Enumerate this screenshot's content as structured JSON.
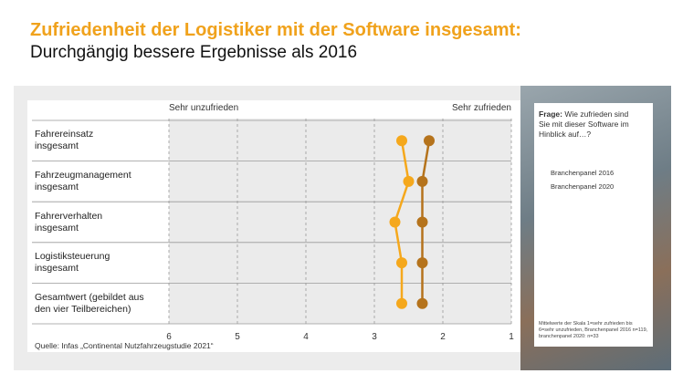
{
  "chart_data": {
    "type": "dot",
    "title": "Zufriedenheit der Logistiker mit der Software insgesamt:",
    "subtitle": "Durchgängig bessere Ergebnisse als 2016",
    "left_label": "Sehr unzufrieden",
    "right_label": "Sehr zufrieden",
    "categories": [
      "Fahrereinsatz\ninsgesamt",
      "Fahrzeugmanagement\ninsgesamt",
      "Fahrerverhalten\ninsgesamt",
      "Logistiksteuerung\ninsgesamt",
      "Gesamtwert (gebildet aus\nden vier Teilbereichen)"
    ],
    "series": [
      {
        "name": "Branchenpanel 2016",
        "color": "#f5a81c",
        "values": [
          2.6,
          2.5,
          2.7,
          2.6,
          2.6
        ]
      },
      {
        "name": "Branchenpanel 2020",
        "color": "#b5731c",
        "values": [
          2.2,
          2.3,
          2.3,
          2.3,
          2.3
        ]
      }
    ],
    "xlim": [
      6,
      1
    ],
    "xticks": [
      6,
      5,
      4,
      3,
      2,
      1
    ],
    "grid": true,
    "question_label": "Frage:",
    "question": "Wie zufrieden sind Sie mit dieser Software im Hinblick auf…?",
    "note": "Mittelwerte der Skala 1=sehr zufrieden bis 6=sehr unzufrieden, Branchenpanel 2016 n=119, branchenpanel 2020: n=33",
    "source": "Quelle: Infas „Continental Nutzfahrzeugstudie 2021“"
  }
}
